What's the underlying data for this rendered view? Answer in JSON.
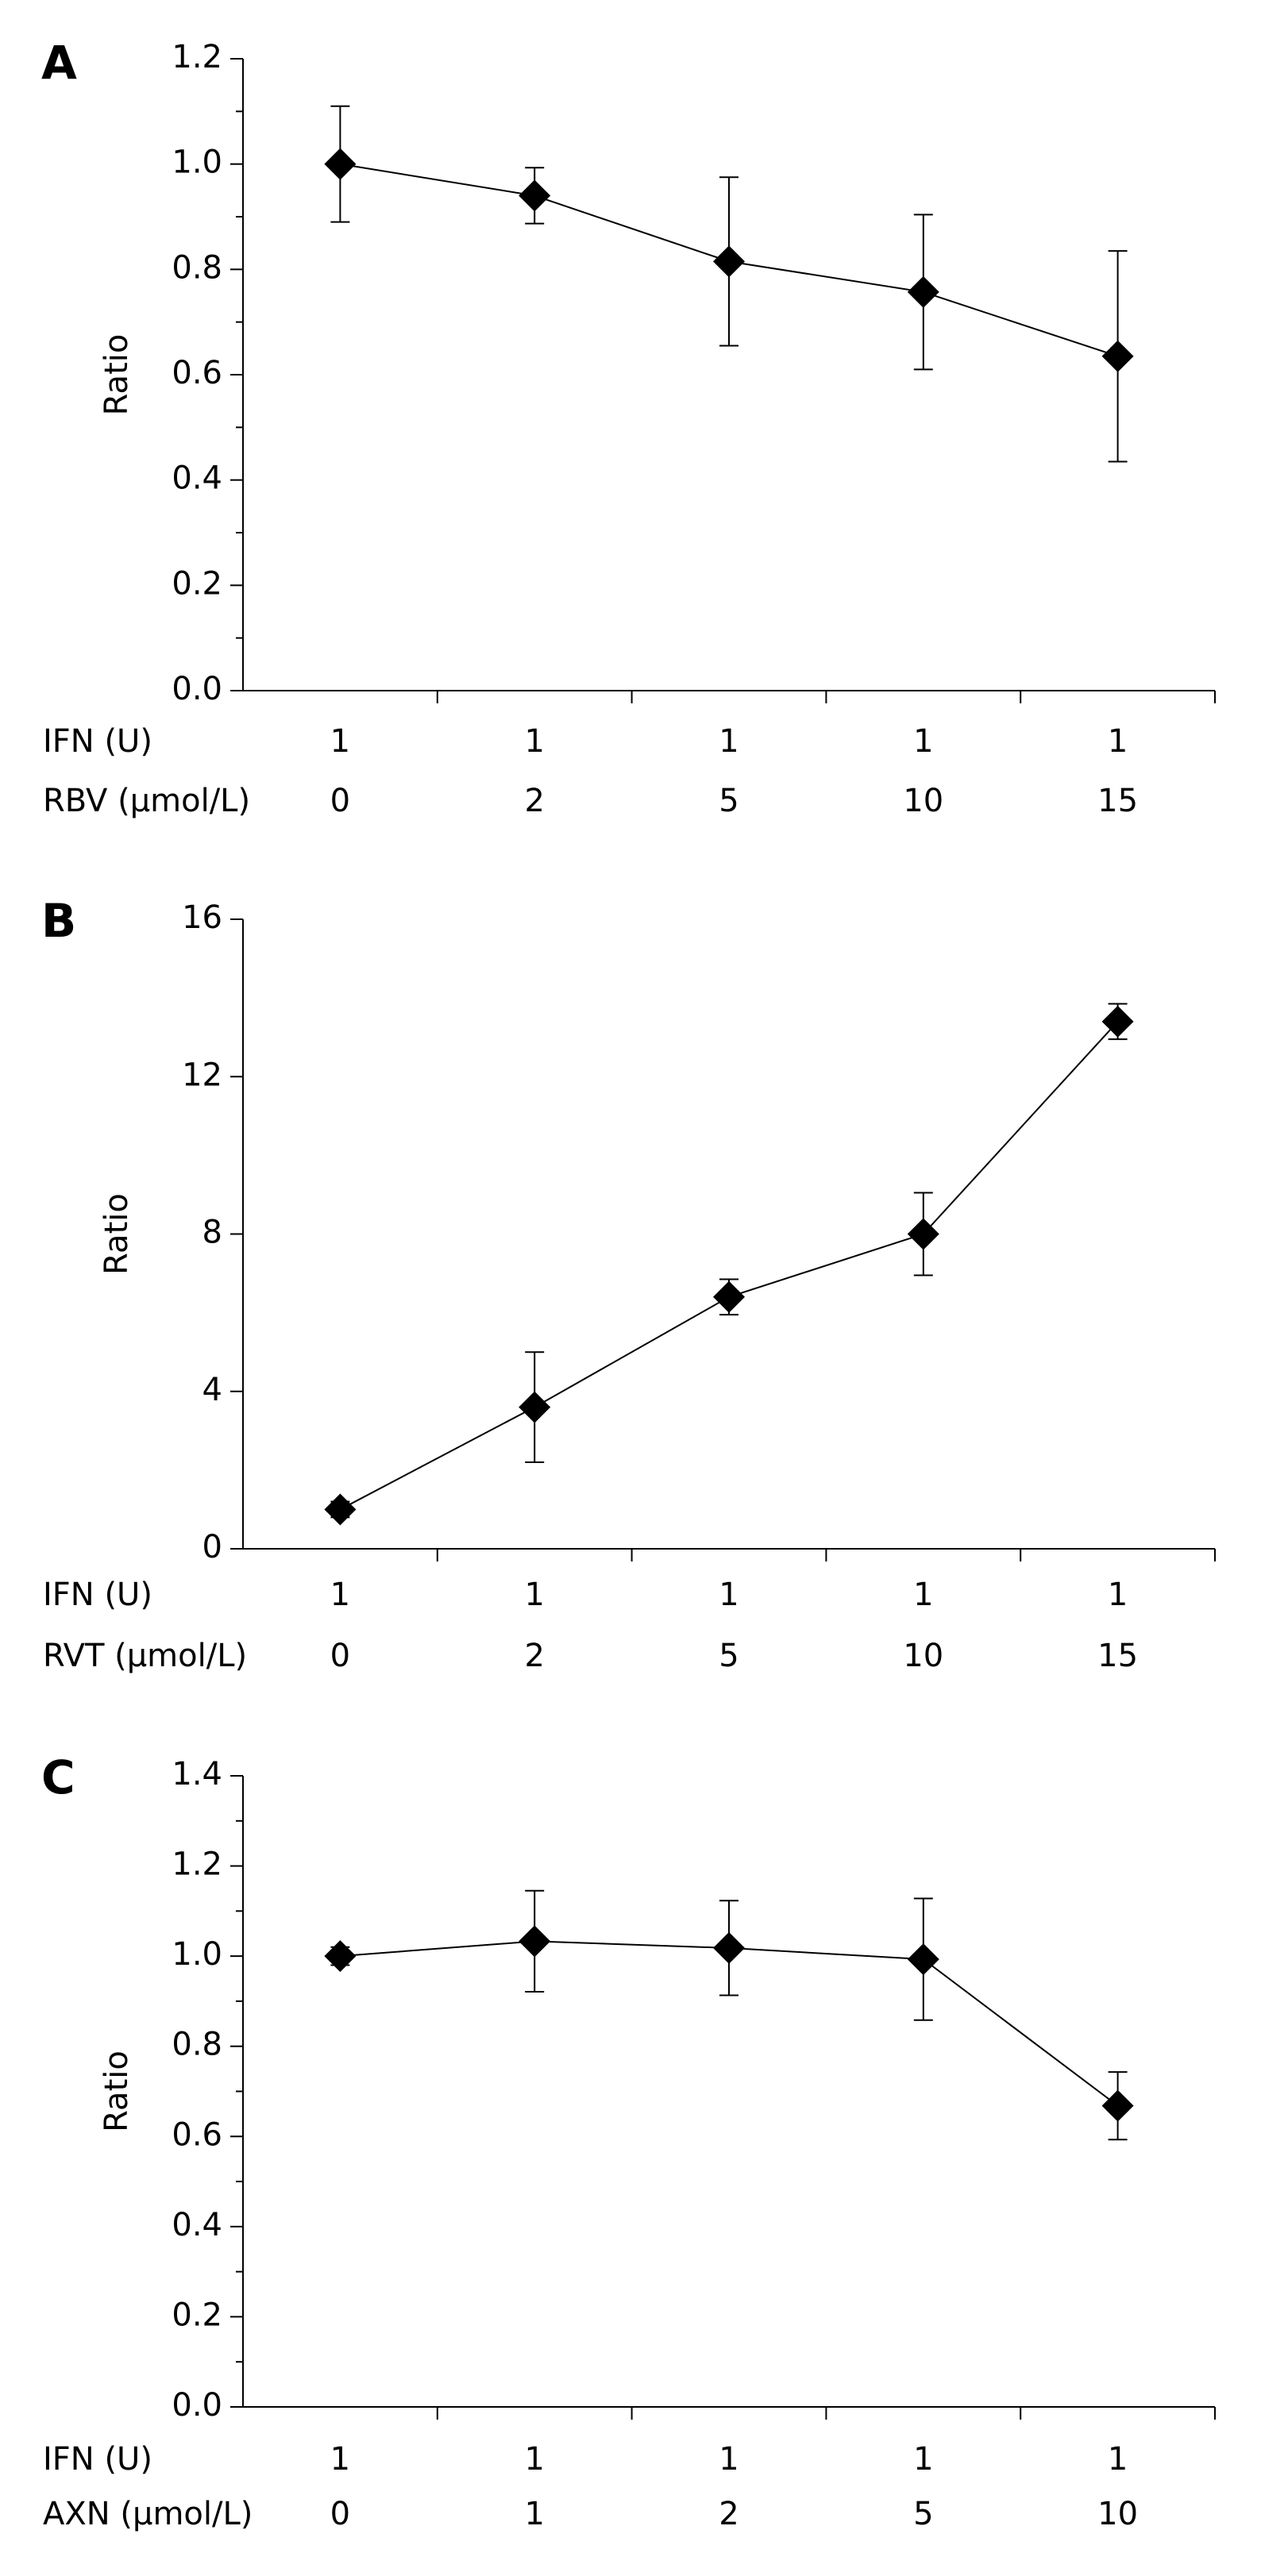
{
  "chart_data": [
    {
      "type": "line",
      "panel": "A",
      "ylabel": "Ratio",
      "row1_label": "IFN (U)",
      "row1": [
        "1",
        "1",
        "1",
        "1",
        "1"
      ],
      "category_label": "RBV (μmol/L)",
      "categories": [
        "0",
        "2",
        "5",
        "10",
        "15"
      ],
      "series": [
        {
          "color": "#000000",
          "values": [
            1.0,
            0.94,
            0.815,
            0.757,
            0.635
          ],
          "errors": [
            0.11,
            0.053,
            0.16,
            0.147,
            0.2
          ]
        }
      ],
      "ylim": [
        0,
        1.2
      ],
      "yticks": [
        {
          "value": 0,
          "label": "0.0"
        },
        0.2,
        0.4,
        0.6,
        0.8,
        {
          "value": 1,
          "label": "1.0"
        },
        1.2
      ],
      "minor_ticks": true
    },
    {
      "type": "line",
      "panel": "B",
      "ylabel": "Ratio",
      "row1_label": "IFN (U)",
      "row1": [
        "1",
        "1",
        "1",
        "1",
        "1"
      ],
      "category_label": "RVT (μmol/L)",
      "categories": [
        "0",
        "2",
        "5",
        "10",
        "15"
      ],
      "series": [
        {
          "color": "#000000",
          "values": [
            1.0,
            3.6,
            6.4,
            8.0,
            13.4
          ],
          "errors": [
            0.2,
            1.4,
            0.45,
            1.05,
            0.45
          ]
        }
      ],
      "ylim": [
        0,
        16
      ],
      "yticks": [
        0,
        4,
        8,
        12,
        16
      ],
      "minor_ticks": false
    },
    {
      "type": "line",
      "panel": "C",
      "ylabel": "Ratio",
      "row1_label": "IFN (U)",
      "row1": [
        "1",
        "1",
        "1",
        "1",
        "1"
      ],
      "category_label": "AXN (μmol/L)",
      "categories": [
        "0",
        "1",
        "2",
        "5",
        "10"
      ],
      "series": [
        {
          "color": "#000000",
          "values": [
            1.0,
            1.033,
            1.018,
            0.993,
            0.668
          ],
          "errors": [
            0.02,
            0.112,
            0.105,
            0.135,
            0.075
          ]
        }
      ],
      "ylim": [
        0,
        1.4
      ],
      "yticks": [
        {
          "value": 0,
          "label": "0.0"
        },
        0.2,
        0.4,
        0.6,
        0.8,
        {
          "value": 1,
          "label": "1.0"
        },
        1.2,
        1.4
      ],
      "minor_ticks": true
    }
  ]
}
